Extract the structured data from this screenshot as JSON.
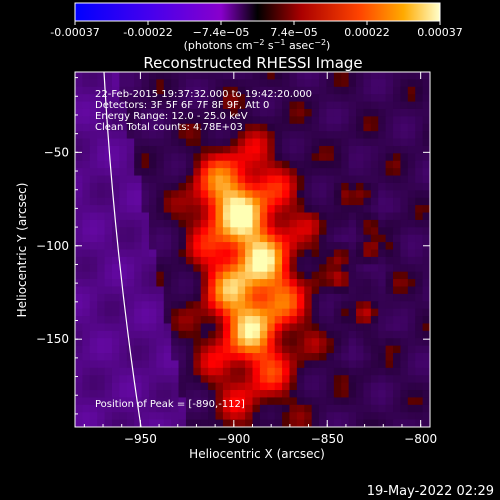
{
  "colorbar": {
    "ticks": [
      "-0.00037",
      "-0.00022",
      "−7.4e−05",
      "7.4e−05",
      "0.00022",
      "0.00037"
    ],
    "unit_prefix": "(photons cm",
    "unit_sup1": "−2",
    "unit_mid": " s",
    "unit_sup2": "−1",
    "unit_mid2": " asec",
    "unit_sup3": "−2",
    "unit_suffix": ")"
  },
  "chart_data": {
    "type": "heatmap",
    "title": "Reconstructed RHESSI Image",
    "xlabel": "Heliocentric X (arcsec)",
    "ylabel": "Heliocentric Y (arcsec)",
    "xlim": [
      -985,
      -795
    ],
    "ylim": [
      -197,
      -7
    ],
    "x_ticks": [
      -950,
      -900,
      -850,
      -800
    ],
    "y_ticks": [
      -50,
      -100,
      -150
    ],
    "x_tick_labels": [
      "−950",
      "−900",
      "−850",
      "−800"
    ],
    "y_tick_labels": [
      "−50",
      "−100",
      "−150"
    ],
    "value_range": [
      -0.00037,
      0.00037
    ],
    "peak": [
      -890,
      -112
    ],
    "annotations": [
      "22-Feb-2015 19:37:32.000 to 19:42:20.000",
      "Detectors: 3F 5F 6F 7F 8F 9F, Att 0",
      "Energy Range: 12.0 - 25.0 keV",
      "Clean     Total counts: 4.78E+03"
    ],
    "peak_label": "Position of Peak = [-890,-112]"
  },
  "footer": {
    "timestamp": "19-May-2022 02:29"
  }
}
